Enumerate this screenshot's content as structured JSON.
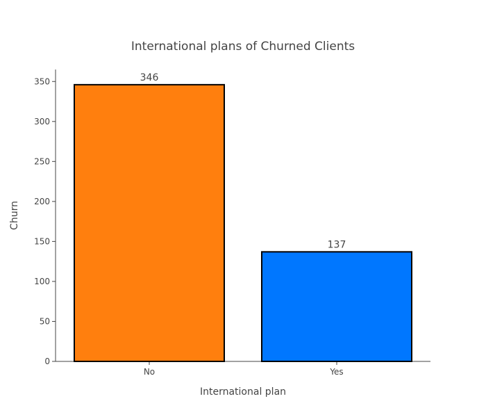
{
  "chart_data": {
    "type": "bar",
    "title": "International plans of Churned Clients",
    "xlabel": "International plan",
    "ylabel": "Churn",
    "categories": [
      "No",
      "Yes"
    ],
    "values": [
      346,
      137
    ],
    "data_labels": [
      "346",
      "137"
    ],
    "colors": [
      "#ff7f0e",
      "#0077ff"
    ],
    "ylim": [
      0,
      365
    ],
    "yticks": [
      0,
      50,
      100,
      150,
      200,
      250,
      300,
      350
    ],
    "grid": false,
    "legend": "none"
  }
}
